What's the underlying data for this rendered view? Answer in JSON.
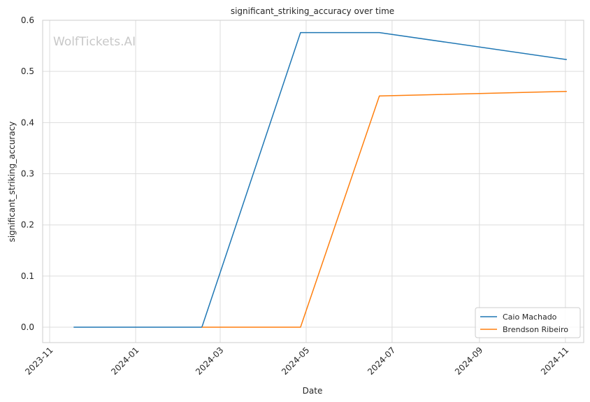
{
  "chart_data": {
    "type": "line",
    "title": "significant_striking_accuracy over time",
    "xlabel": "Date",
    "ylabel": "significant_striking_accuracy",
    "watermark": "WolfTickets.AI",
    "x_ticks": [
      "2023-11",
      "2024-01",
      "2024-03",
      "2024-05",
      "2024-07",
      "2024-09",
      "2024-11"
    ],
    "y_ticks": [
      "0.0",
      "0.1",
      "0.2",
      "0.3",
      "0.4",
      "0.5",
      "0.6"
    ],
    "xlim": [
      "2023-10-27",
      "2024-11-14"
    ],
    "ylim": [
      -0.03,
      0.6
    ],
    "grid": true,
    "legend_position": "lower-right",
    "series": [
      {
        "name": "Caio Machado",
        "color": "#1f77b4",
        "points": [
          {
            "x": "2023-11-18",
            "y": 0.0
          },
          {
            "x": "2024-02-17",
            "y": 0.0
          },
          {
            "x": "2024-04-27",
            "y": 0.576
          },
          {
            "x": "2024-06-22",
            "y": 0.576
          },
          {
            "x": "2024-11-02",
            "y": 0.523
          }
        ]
      },
      {
        "name": "Brendson Ribeiro",
        "color": "#ff7f0e",
        "points": [
          {
            "x": "2024-02-17",
            "y": 0.0
          },
          {
            "x": "2024-04-27",
            "y": 0.0
          },
          {
            "x": "2024-06-22",
            "y": 0.452
          },
          {
            "x": "2024-11-02",
            "y": 0.461
          }
        ]
      }
    ]
  }
}
